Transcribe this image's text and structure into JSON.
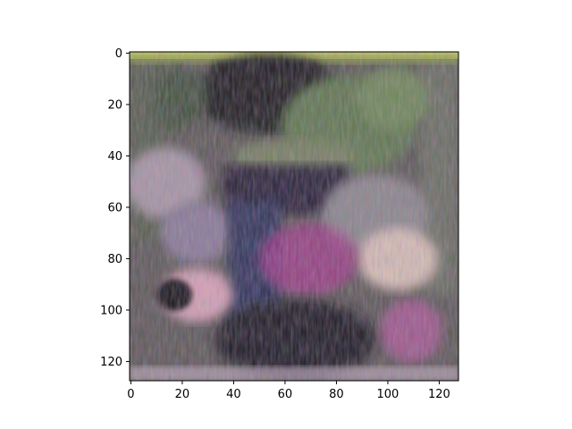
{
  "chart_data": {
    "type": "heatmap",
    "title": "",
    "xlabel": "",
    "ylabel": "",
    "image_size": [
      128,
      128
    ],
    "xlim": [
      -0.5,
      127.5
    ],
    "ylim": [
      127.5,
      -0.5
    ],
    "y_axis_inverted": true,
    "x_ticks": [
      0,
      20,
      40,
      60,
      80,
      100,
      120
    ],
    "x_tick_labels": [
      "0",
      "20",
      "40",
      "60",
      "80",
      "100",
      "120"
    ],
    "y_ticks": [
      0,
      20,
      40,
      60,
      80,
      100,
      120
    ],
    "y_tick_labels": [
      "0",
      "20",
      "40",
      "60",
      "80",
      "100",
      "120"
    ],
    "grid": false,
    "legend": "none",
    "description_colors": {
      "top_band": "#b8c25a",
      "dark_upper": "#1a1e1a",
      "green_mid": "#5e7a4e",
      "pink_blotch": "#d8a6b6",
      "magenta": "#a83a8e",
      "blue_dark": "#2e3458",
      "background_gray": "#6e6e6a"
    }
  }
}
